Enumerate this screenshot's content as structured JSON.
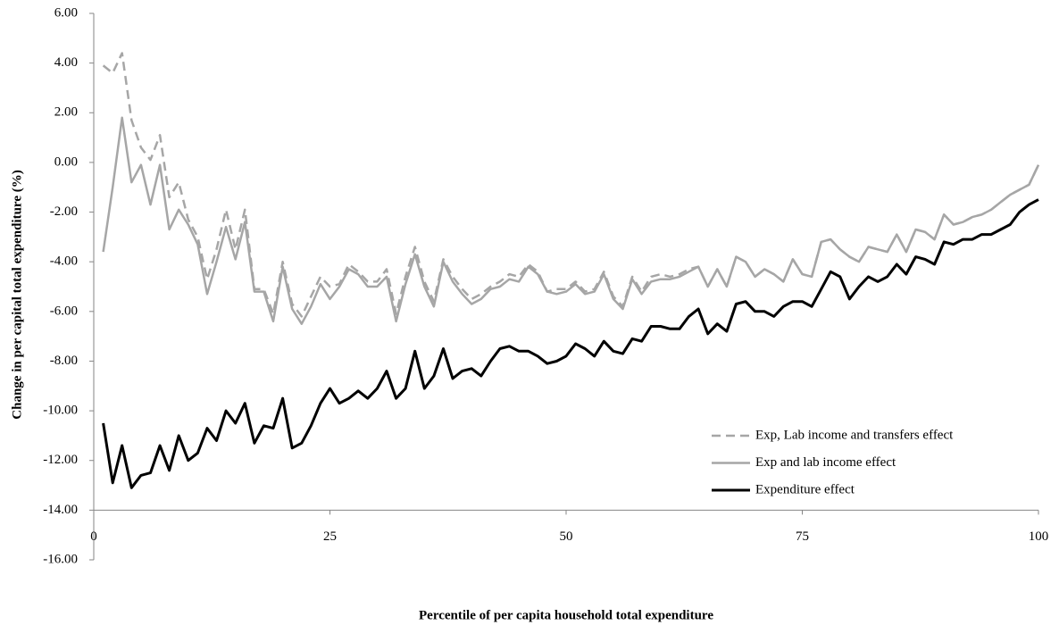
{
  "chart_data": {
    "type": "line",
    "xlabel": "Percentile of per capita household total expenditure",
    "ylabel": "Change in per capital total expenditure (%)",
    "x": [
      1,
      2,
      3,
      4,
      5,
      6,
      7,
      8,
      9,
      10,
      11,
      12,
      13,
      14,
      15,
      16,
      17,
      18,
      19,
      20,
      21,
      22,
      23,
      24,
      25,
      26,
      27,
      28,
      29,
      30,
      31,
      32,
      33,
      34,
      35,
      36,
      37,
      38,
      39,
      40,
      41,
      42,
      43,
      44,
      45,
      46,
      47,
      48,
      49,
      50,
      51,
      52,
      53,
      54,
      55,
      56,
      57,
      58,
      59,
      60,
      61,
      62,
      63,
      64,
      65,
      66,
      67,
      68,
      69,
      70,
      71,
      72,
      73,
      74,
      75,
      76,
      77,
      78,
      79,
      80,
      81,
      82,
      83,
      84,
      85,
      86,
      87,
      88,
      89,
      90,
      91,
      92,
      93,
      94,
      95,
      96,
      97,
      98,
      99,
      100
    ],
    "series": [
      {
        "name": "Exp, Lab income and transfers effect",
        "color": "#a6a6a6",
        "line_style": "dashed",
        "values": [
          3.9,
          3.6,
          4.4,
          1.7,
          0.6,
          0.1,
          1.1,
          -1.4,
          -0.8,
          -2.3,
          -3.0,
          -4.7,
          -3.5,
          -1.9,
          -3.5,
          -1.9,
          -5.1,
          -5.1,
          -6.1,
          -4.0,
          -5.7,
          -6.2,
          -5.4,
          -4.6,
          -5.0,
          -4.9,
          -4.1,
          -4.4,
          -4.8,
          -4.8,
          -4.3,
          -6.1,
          -4.6,
          -3.4,
          -4.8,
          -5.6,
          -3.9,
          -4.6,
          -5.1,
          -5.5,
          -5.3,
          -5.0,
          -4.8,
          -4.5,
          -4.6,
          -4.1,
          -4.4,
          -5.2,
          -5.1,
          -5.1,
          -4.8,
          -5.2,
          -5.1,
          -4.4,
          -5.4,
          -5.8,
          -4.6,
          -5.2,
          -4.6,
          -4.5,
          -4.6,
          -4.5,
          -4.3,
          -4.2,
          -5.0,
          -4.3,
          -5.0,
          -3.8,
          -4.0,
          -4.6,
          -4.3,
          -4.5,
          -4.8,
          -3.9,
          -4.5,
          -4.6,
          -3.2,
          -3.1,
          -3.5,
          -3.8,
          -4.0,
          -3.4,
          -3.5,
          -3.6,
          -2.9,
          -3.6,
          -2.7,
          -2.8,
          -3.1,
          -2.1,
          -2.5,
          -2.4,
          -2.2,
          -2.1,
          -1.9,
          -1.6,
          -1.3,
          -1.1,
          -0.9,
          -0.1
        ]
      },
      {
        "name": "Exp and lab income effect",
        "color": "#a6a6a6",
        "line_style": "solid",
        "values": [
          -3.6,
          -1.0,
          1.8,
          -0.8,
          -0.1,
          -1.7,
          -0.1,
          -2.7,
          -1.9,
          -2.5,
          -3.3,
          -5.3,
          -4.0,
          -2.6,
          -3.9,
          -2.4,
          -5.2,
          -5.2,
          -6.4,
          -4.2,
          -5.9,
          -6.5,
          -5.8,
          -4.9,
          -5.5,
          -5.0,
          -4.3,
          -4.5,
          -5.0,
          -5.0,
          -4.6,
          -6.4,
          -4.9,
          -3.7,
          -5.0,
          -5.8,
          -4.0,
          -4.8,
          -5.3,
          -5.7,
          -5.5,
          -5.1,
          -5.0,
          -4.7,
          -4.8,
          -4.2,
          -4.5,
          -5.2,
          -5.3,
          -5.2,
          -4.9,
          -5.3,
          -5.2,
          -4.5,
          -5.5,
          -5.9,
          -4.7,
          -5.3,
          -4.8,
          -4.7,
          -4.7,
          -4.6,
          -4.4,
          -4.2,
          -5.0,
          -4.3,
          -5.0,
          -3.8,
          -4.0,
          -4.6,
          -4.3,
          -4.5,
          -4.8,
          -3.9,
          -4.5,
          -4.6,
          -3.2,
          -3.1,
          -3.5,
          -3.8,
          -4.0,
          -3.4,
          -3.5,
          -3.6,
          -2.9,
          -3.6,
          -2.7,
          -2.8,
          -3.1,
          -2.1,
          -2.5,
          -2.4,
          -2.2,
          -2.1,
          -1.9,
          -1.6,
          -1.3,
          -1.1,
          -0.9,
          -0.1
        ]
      },
      {
        "name": "Expenditure effect",
        "color": "#000000",
        "line_style": "solid",
        "values": [
          -10.5,
          -12.9,
          -11.4,
          -13.1,
          -12.6,
          -12.5,
          -11.4,
          -12.4,
          -11.0,
          -12.0,
          -11.7,
          -10.7,
          -11.2,
          -10.0,
          -10.5,
          -9.7,
          -11.3,
          -10.6,
          -10.7,
          -9.5,
          -11.5,
          -11.3,
          -10.6,
          -9.7,
          -9.1,
          -9.7,
          -9.5,
          -9.2,
          -9.5,
          -9.1,
          -8.4,
          -9.5,
          -9.1,
          -7.6,
          -9.1,
          -8.6,
          -7.5,
          -8.7,
          -8.4,
          -8.3,
          -8.6,
          -8.0,
          -7.5,
          -7.4,
          -7.6,
          -7.6,
          -7.8,
          -8.1,
          -8.0,
          -7.8,
          -7.3,
          -7.5,
          -7.8,
          -7.2,
          -7.6,
          -7.7,
          -7.1,
          -7.2,
          -6.6,
          -6.6,
          -6.7,
          -6.7,
          -6.2,
          -5.9,
          -6.9,
          -6.5,
          -6.8,
          -5.7,
          -5.6,
          -6.0,
          -6.0,
          -6.2,
          -5.8,
          -5.6,
          -5.6,
          -5.8,
          -5.1,
          -4.4,
          -4.6,
          -5.5,
          -5.0,
          -4.6,
          -4.8,
          -4.6,
          -4.1,
          -4.5,
          -3.8,
          -3.9,
          -4.1,
          -3.2,
          -3.3,
          -3.1,
          -3.1,
          -2.9,
          -2.9,
          -2.7,
          -2.5,
          -2.0,
          -1.7,
          -1.5
        ]
      }
    ],
    "xlim": [
      0,
      100
    ],
    "xticks": [
      0,
      25,
      50,
      75,
      100
    ],
    "ylim": [
      -16,
      6
    ],
    "yticks": [
      {
        "value": -16,
        "label": "-16.00"
      },
      {
        "value": -14,
        "label": "-14.00"
      },
      {
        "value": -12,
        "label": "-12.00"
      },
      {
        "value": -10,
        "label": "-10.00"
      },
      {
        "value": -8,
        "label": "-8.00"
      },
      {
        "value": -6,
        "label": "-6.00"
      },
      {
        "value": -4,
        "label": "-4.00"
      },
      {
        "value": -2,
        "label": "-2.00"
      },
      {
        "value": 0,
        "label": "0.00"
      },
      {
        "value": 2,
        "label": "2.00"
      },
      {
        "value": 4,
        "label": "4.00"
      },
      {
        "value": 6,
        "label": "6.00"
      }
    ],
    "xaxis_crosses": -14,
    "grid": false,
    "legend": "lower right"
  }
}
